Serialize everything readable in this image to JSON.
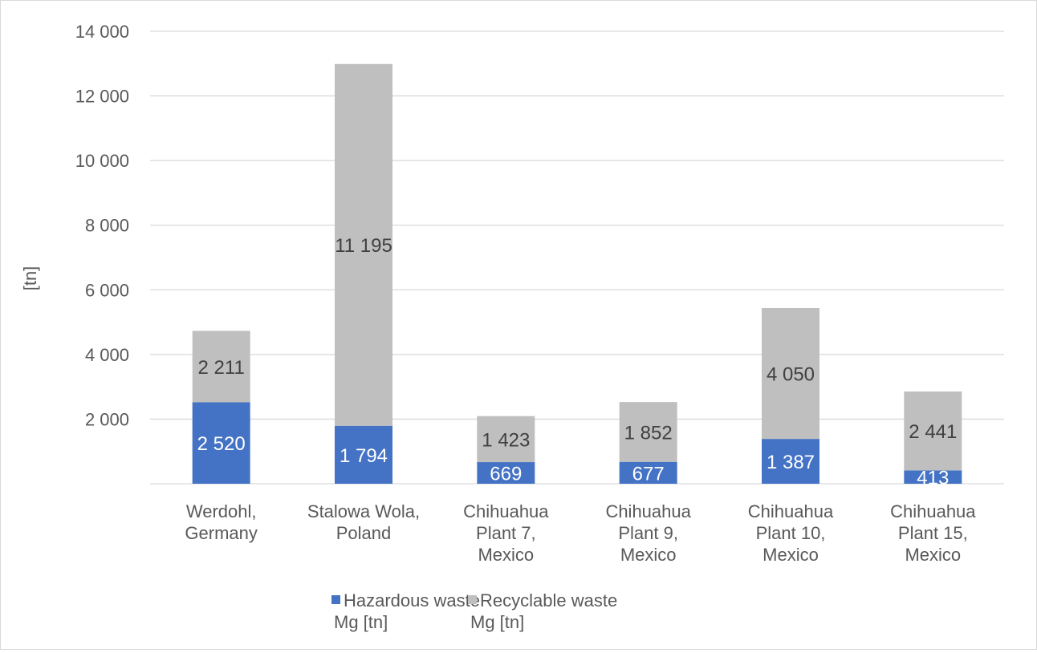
{
  "chart_data": {
    "type": "bar",
    "stacked": true,
    "title": "",
    "xlabel": "",
    "ylabel": "[tn]",
    "ylim": [
      0,
      14000
    ],
    "ytick_labels": [
      "2 000",
      "4 000",
      "6 000",
      "8 000",
      "10 000",
      "12 000",
      "14 000"
    ],
    "ytick_values": [
      2000,
      4000,
      6000,
      8000,
      10000,
      12000,
      14000
    ],
    "grid": true,
    "legend_position": "bottom",
    "categories": [
      [
        "Werdohl,",
        "Germany"
      ],
      [
        "Stalowa Wola,",
        "Poland"
      ],
      [
        "Chihuahua",
        "Plant 7,",
        "Mexico"
      ],
      [
        "Chihuahua",
        "Plant 9,",
        "Mexico"
      ],
      [
        "Chihuahua",
        "Plant 10,",
        "Mexico"
      ],
      [
        "Chihuahua",
        "Plant 15,",
        "Mexico"
      ]
    ],
    "series": [
      {
        "name": [
          "Hazardous waste",
          "Mg [tn]"
        ],
        "color": "#4472C4",
        "values": [
          2520,
          1794,
          669,
          677,
          1387,
          413
        ],
        "labels": [
          "2 520",
          "1 794",
          "669",
          "677",
          "1 387",
          "413"
        ]
      },
      {
        "name": [
          "Recyclable waste",
          "Mg [tn]"
        ],
        "color": "#BFBFBF",
        "values": [
          2211,
          11195,
          1423,
          1852,
          4050,
          2441
        ],
        "labels": [
          "2 211",
          "11 195",
          "1 423",
          "1 852",
          "4 050",
          "2 441"
        ]
      }
    ]
  }
}
